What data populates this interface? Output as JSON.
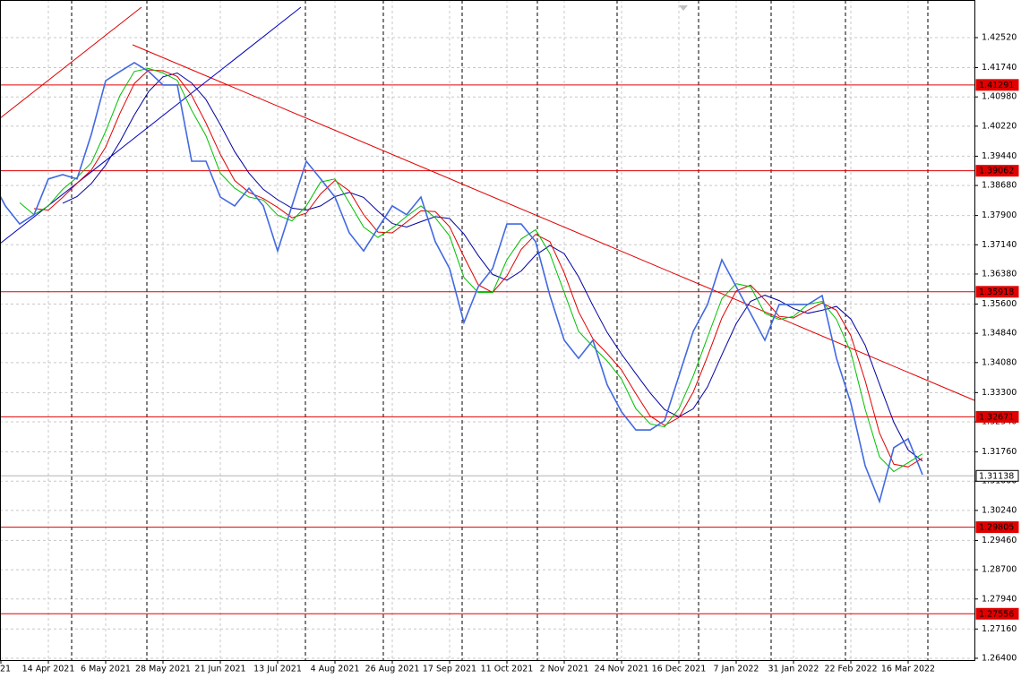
{
  "chart_data": {
    "type": "line",
    "categories": [
      "21",
      null,
      null,
      null,
      "14 Apr 2021",
      null,
      null,
      null,
      "6 May 2021",
      null,
      null,
      null,
      "28 May 2021",
      null,
      null,
      null,
      "21 Jun 2021",
      null,
      null,
      null,
      "13 Jul 2021",
      null,
      null,
      null,
      "4 Aug 2021",
      null,
      null,
      null,
      "26 Aug 2021",
      null,
      null,
      null,
      "17 Sep 2021",
      null,
      null,
      null,
      "11 Oct 2021",
      null,
      null,
      null,
      "2 Nov 2021",
      null,
      null,
      null,
      "24 Nov 2021",
      null,
      null,
      null,
      "16 Dec 2021",
      null,
      null,
      null,
      "7 Jan 2022",
      null,
      null,
      null,
      "31 Jan 2022",
      null,
      null,
      null,
      "22 Feb 2022",
      null,
      null,
      null,
      "16 Mar 2022",
      null
    ],
    "series": [
      {
        "color": "#4169e1",
        "values": [
          1.3885,
          1.3815,
          1.3768,
          1.3792,
          1.3885,
          1.3896,
          1.3885,
          1.4001,
          1.414,
          1.4164,
          1.4187,
          1.4164,
          1.4129,
          1.4129,
          1.3931,
          1.3931,
          1.3838,
          1.3815,
          1.3861,
          1.3815,
          1.3698,
          1.3815,
          1.3931,
          1.3885,
          1.3838,
          1.3745,
          1.3698,
          1.3757,
          1.3815,
          1.3792,
          1.3838,
          1.3722,
          1.3652,
          1.3512,
          1.3605,
          1.3652,
          1.3768,
          1.3768,
          1.3722,
          1.3582,
          1.3466,
          1.3419,
          1.3466,
          1.335,
          1.328,
          1.3233,
          1.3233,
          1.3257,
          1.3373,
          1.3489,
          1.3559,
          1.3675,
          1.3605,
          1.3536,
          1.3466,
          1.3559,
          1.3559,
          1.3559,
          1.3582,
          1.3419,
          1.3303,
          1.314,
          1.3047,
          1.3187,
          1.321,
          1.3117
        ]
      },
      {
        "color": "#00c000",
        "values": [
          null,
          null,
          1.3823,
          1.3792,
          1.3815,
          1.3858,
          1.3889,
          1.3927,
          1.4009,
          1.4102,
          1.4164,
          1.4172,
          1.416,
          1.4141,
          1.4063,
          1.3997,
          1.39,
          1.3861,
          1.3838,
          1.383,
          1.3791,
          1.3776,
          1.3815,
          1.3877,
          1.3885,
          1.3823,
          1.376,
          1.3733,
          1.3757,
          1.3788,
          1.3815,
          1.3784,
          1.3737,
          1.3629,
          1.359,
          1.359,
          1.3675,
          1.3729,
          1.3753,
          1.3691,
          1.359,
          1.3489,
          1.345,
          1.3412,
          1.3365,
          1.3288,
          1.3249,
          1.3241,
          1.3288,
          1.3373,
          1.3474,
          1.3574,
          1.3613,
          1.3605,
          1.3536,
          1.352,
          1.3528,
          1.3559,
          1.3567,
          1.352,
          1.3435,
          1.3287,
          1.3163,
          1.3125,
          1.3148,
          1.3171
        ]
      },
      {
        "color": "#e00000",
        "values": [
          null,
          null,
          null,
          1.3808,
          1.3804,
          1.3837,
          1.3874,
          1.3908,
          1.3968,
          1.4056,
          1.4133,
          1.4168,
          1.4166,
          1.4151,
          1.4102,
          1.403,
          1.3949,
          1.3881,
          1.385,
          1.3834,
          1.3811,
          1.3784,
          1.3796,
          1.3846,
          1.3881,
          1.3854,
          1.3792,
          1.3747,
          1.3745,
          1.3773,
          1.3802,
          1.38,
          1.3761,
          1.3683,
          1.361,
          1.359,
          1.3633,
          1.3702,
          1.3741,
          1.3722,
          1.3641,
          1.354,
          1.347,
          1.3431,
          1.3389,
          1.3327,
          1.3269,
          1.3245,
          1.3265,
          1.3331,
          1.3424,
          1.3524,
          1.3594,
          1.3609,
          1.3571,
          1.3528,
          1.3524,
          1.3544,
          1.3563,
          1.3544,
          1.3478,
          1.3361,
          1.3225,
          1.3144,
          1.3137,
          1.316
        ]
      },
      {
        "color": "#0000a0",
        "values": [
          null,
          null,
          null,
          null,
          null,
          1.3822,
          1.3839,
          1.3873,
          1.3921,
          1.3982,
          1.4051,
          1.4112,
          1.415,
          1.416,
          1.4134,
          1.4091,
          1.4026,
          1.3956,
          1.39,
          1.3858,
          1.3831,
          1.3809,
          1.3804,
          1.3815,
          1.3839,
          1.385,
          1.3837,
          1.3801,
          1.3769,
          1.376,
          1.3774,
          1.3787,
          1.3782,
          1.3742,
          1.3686,
          1.3637,
          1.3622,
          1.3646,
          1.3687,
          1.3712,
          1.3691,
          1.3631,
          1.3556,
          1.3486,
          1.343,
          1.3379,
          1.3329,
          1.3286,
          1.3267,
          1.3288,
          1.3345,
          1.3428,
          1.3509,
          1.3567,
          1.3583,
          1.3569,
          1.3548,
          1.3536,
          1.3544,
          1.3554,
          1.3521,
          1.3453,
          1.3352,
          1.3253,
          1.3181,
          1.3152
        ]
      }
    ],
    "ylim": [
      1.26353,
      1.43497
    ],
    "yticks": [
      {
        "value": 1.4252,
        "label": "1.42520"
      },
      {
        "value": 1.4174,
        "label": "1.41740"
      },
      {
        "value": 1.4098,
        "label": "1.40980"
      },
      {
        "value": 1.4022,
        "label": "1.40220"
      },
      {
        "value": 1.3944,
        "label": "1.39440"
      },
      {
        "value": 1.3868,
        "label": "1.38680"
      },
      {
        "value": 1.379,
        "label": "1.37900"
      },
      {
        "value": 1.3714,
        "label": "1.37140"
      },
      {
        "value": 1.3638,
        "label": "1.36380"
      },
      {
        "value": 1.356,
        "label": "1.35600"
      },
      {
        "value": 1.3484,
        "label": "1.34840"
      },
      {
        "value": 1.3408,
        "label": "1.34080"
      },
      {
        "value": 1.333,
        "label": "1.33300"
      },
      {
        "value": 1.3254,
        "label": "1.32540"
      },
      {
        "value": 1.3176,
        "label": "1.31760"
      },
      {
        "value": 1.31,
        "label": "1.31000"
      },
      {
        "value": 1.3024,
        "label": "1.30240"
      },
      {
        "value": 1.2946,
        "label": "1.29460"
      },
      {
        "value": 1.287,
        "label": "1.28700"
      },
      {
        "value": 1.2794,
        "label": "1.27940"
      },
      {
        "value": 1.2716,
        "label": "1.27160"
      },
      {
        "value": 1.264,
        "label": "1.26400"
      }
    ],
    "levels": [
      1.41291,
      1.39062,
      1.35918,
      1.32671,
      1.29805,
      1.27556
    ],
    "level_color": "#e00000",
    "current_price": 1.31138,
    "grid": true
  }
}
